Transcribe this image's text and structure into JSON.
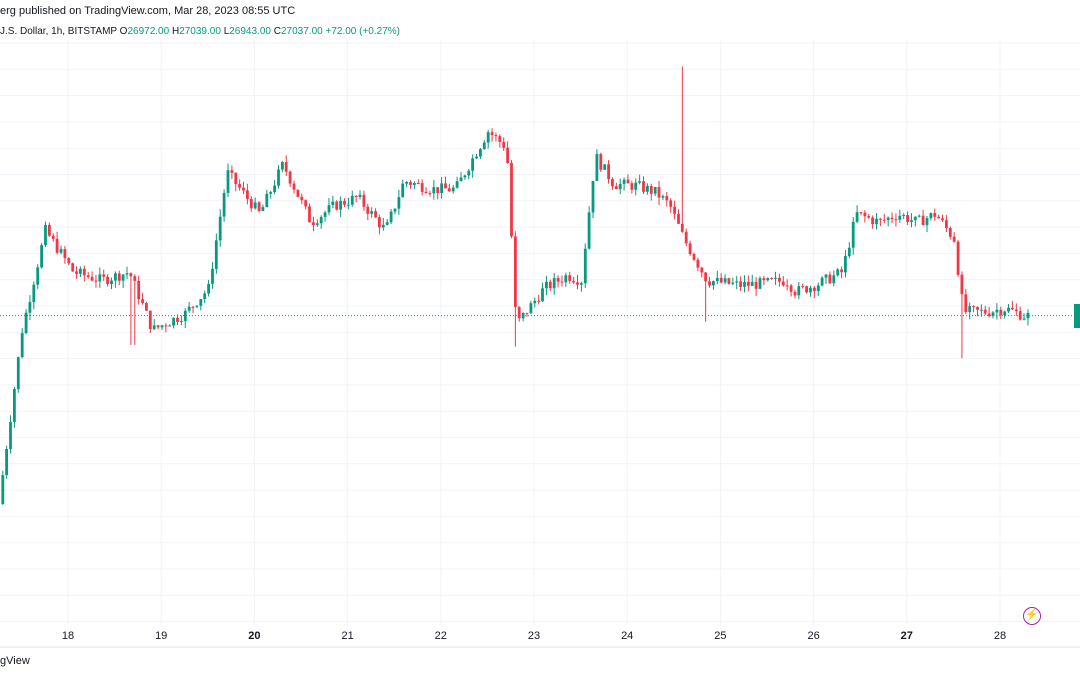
{
  "header": {
    "published": "erg published on TradingView.com, Mar 28, 2023 08:55 UTC",
    "symbol": "J.S. Dollar, 1h, BITSTAMP",
    "open_key": "O",
    "open_val": "26972.00",
    "high_key": "H",
    "high_val": "27039.00",
    "low_key": "L",
    "low_val": "26943.00",
    "close_key": "C",
    "close_val": "27037.00",
    "change": "+72.00 (+0.27%)"
  },
  "footer": {
    "brand": "gView"
  },
  "icons": {
    "bolt": "bolt-icon"
  },
  "colors": {
    "up": "#089981",
    "down": "#f23645",
    "grid": "#f0f3fa",
    "last_price_line": "#089981"
  },
  "chart_data": {
    "type": "candlestick",
    "interval": "1h",
    "xlabel": "",
    "ylabel": "",
    "x_ticks": [
      "18",
      "19",
      "20",
      "21",
      "22",
      "23",
      "24",
      "25",
      "26",
      "27",
      "28"
    ],
    "last_price": 27037,
    "ylim": [
      25200,
      28700
    ],
    "anchors": [
      [
        17.3,
        25900
      ],
      [
        17.55,
        26950
      ],
      [
        17.8,
        27550
      ],
      [
        18.1,
        27300
      ],
      [
        18.4,
        27250
      ],
      [
        18.7,
        27300
      ],
      [
        18.95,
        26950
      ],
      [
        19.3,
        27050
      ],
      [
        19.55,
        27200
      ],
      [
        19.75,
        27900
      ],
      [
        20.1,
        27650
      ],
      [
        20.35,
        27950
      ],
      [
        20.65,
        27600
      ],
      [
        20.9,
        27700
      ],
      [
        21.15,
        27750
      ],
      [
        21.45,
        27550
      ],
      [
        21.65,
        27850
      ],
      [
        21.95,
        27800
      ],
      [
        22.2,
        27800
      ],
      [
        22.55,
        28150
      ],
      [
        22.75,
        28050
      ],
      [
        22.85,
        26980
      ],
      [
        23.15,
        27200
      ],
      [
        23.4,
        27280
      ],
      [
        23.55,
        27250
      ],
      [
        23.7,
        28000
      ],
      [
        23.9,
        27830
      ],
      [
        24.15,
        27820
      ],
      [
        24.35,
        27780
      ],
      [
        24.5,
        27700
      ],
      [
        24.65,
        27500
      ],
      [
        24.9,
        27250
      ],
      [
        25.25,
        27220
      ],
      [
        25.5,
        27230
      ],
      [
        25.75,
        27250
      ],
      [
        25.85,
        27180
      ],
      [
        26.1,
        27230
      ],
      [
        26.35,
        27300
      ],
      [
        26.5,
        27650
      ],
      [
        26.75,
        27600
      ],
      [
        26.95,
        27650
      ],
      [
        27.15,
        27600
      ],
      [
        27.35,
        27650
      ],
      [
        27.55,
        27500
      ],
      [
        27.65,
        27060
      ],
      [
        27.9,
        27060
      ],
      [
        28.1,
        27080
      ],
      [
        28.3,
        27037
      ]
    ],
    "spikes": [
      {
        "x": 18.7,
        "low": 26860
      },
      {
        "x": 22.8,
        "low": 26850
      },
      {
        "x": 24.58,
        "high": 28540
      },
      {
        "x": 24.85,
        "low": 27000
      },
      {
        "x": 27.6,
        "low": 26780
      }
    ]
  }
}
